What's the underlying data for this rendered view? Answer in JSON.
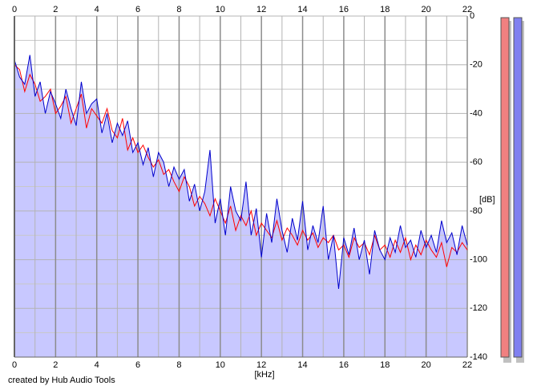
{
  "chart_data": {
    "type": "spectrum",
    "x_label": "[kHz]",
    "y_label": "[dB]",
    "credit": "created by Hub Audio Tools",
    "xlim": [
      0,
      22
    ],
    "ylim": [
      -140,
      0
    ],
    "xticks": [
      0,
      2,
      4,
      6,
      8,
      10,
      12,
      14,
      16,
      18,
      20,
      22
    ],
    "xminor": [
      1,
      3,
      5,
      7,
      9,
      11,
      13,
      15,
      17,
      19,
      21
    ],
    "yticks": [
      0,
      -20,
      -40,
      -60,
      -80,
      -100,
      -120,
      -140
    ],
    "yminor": [
      -10,
      -30,
      -50,
      -70,
      -90,
      -110,
      -130
    ],
    "grid": true,
    "fill_color": "#c8c8ff",
    "x": [
      0,
      0.25,
      0.5,
      0.75,
      1,
      1.25,
      1.5,
      1.75,
      2,
      2.25,
      2.5,
      2.75,
      3,
      3.25,
      3.5,
      3.75,
      4,
      4.25,
      4.5,
      4.75,
      5,
      5.25,
      5.5,
      5.75,
      6,
      6.25,
      6.5,
      6.75,
      7,
      7.25,
      7.5,
      7.75,
      8,
      8.25,
      8.5,
      8.75,
      9,
      9.25,
      9.5,
      9.75,
      10,
      10.25,
      10.5,
      10.75,
      11,
      11.25,
      11.5,
      11.75,
      12,
      12.25,
      12.5,
      12.75,
      13,
      13.25,
      13.5,
      13.75,
      14,
      14.25,
      14.5,
      14.75,
      15,
      15.25,
      15.5,
      15.75,
      16,
      16.25,
      16.5,
      16.75,
      17,
      17.25,
      17.5,
      17.75,
      18,
      18.25,
      18.5,
      18.75,
      19,
      19.25,
      19.5,
      19.75,
      20,
      20.25,
      20.5,
      20.75,
      21,
      21.25,
      21.5,
      21.75,
      22
    ],
    "series": [
      {
        "color": "#ff0000",
        "values": [
          -20,
          -22,
          -31,
          -24,
          -28,
          -35,
          -33,
          -30,
          -40,
          -37,
          -33,
          -44,
          -38,
          -32,
          -46,
          -38,
          -41,
          -44,
          -38,
          -47,
          -50,
          -42,
          -55,
          -50,
          -56,
          -53,
          -58,
          -62,
          -59,
          -65,
          -63,
          -68,
          -72,
          -66,
          -70,
          -78,
          -74,
          -77,
          -82,
          -75,
          -80,
          -85,
          -78,
          -88,
          -82,
          -86,
          -80,
          -90,
          -85,
          -88,
          -91,
          -84,
          -92,
          -87,
          -90,
          -94,
          -88,
          -92,
          -89,
          -95,
          -91,
          -93,
          -90,
          -96,
          -94,
          -99,
          -91,
          -95,
          -93,
          -98,
          -90,
          -96,
          -94,
          -99,
          -92,
          -97,
          -91,
          -100,
          -94,
          -98,
          -92,
          -96,
          -99,
          -93,
          -103,
          -95,
          -97,
          -93,
          -96
        ]
      },
      {
        "color": "#0000cc",
        "filled": true,
        "values": [
          -18,
          -25,
          -28,
          -16,
          -33,
          -27,
          -40,
          -31,
          -36,
          -42,
          -30,
          -38,
          -45,
          -27,
          -40,
          -36,
          -34,
          -48,
          -40,
          -52,
          -44,
          -49,
          -43,
          -56,
          -52,
          -61,
          -54,
          -66,
          -56,
          -60,
          -70,
          -62,
          -67,
          -63,
          -76,
          -69,
          -80,
          -72,
          -55,
          -85,
          -75,
          -90,
          -70,
          -80,
          -84,
          -68,
          -90,
          -79,
          -99,
          -81,
          -93,
          -75,
          -88,
          -97,
          -83,
          -92,
          -76,
          -96,
          -86,
          -93,
          -78,
          -100,
          -90,
          -112,
          -91,
          -98,
          -87,
          -100,
          -92,
          -106,
          -88,
          -96,
          -100,
          -91,
          -97,
          -86,
          -95,
          -92,
          -99,
          -88,
          -95,
          -90,
          -97,
          -84,
          -93,
          -89,
          -98,
          -86,
          -94
        ]
      }
    ]
  }
}
